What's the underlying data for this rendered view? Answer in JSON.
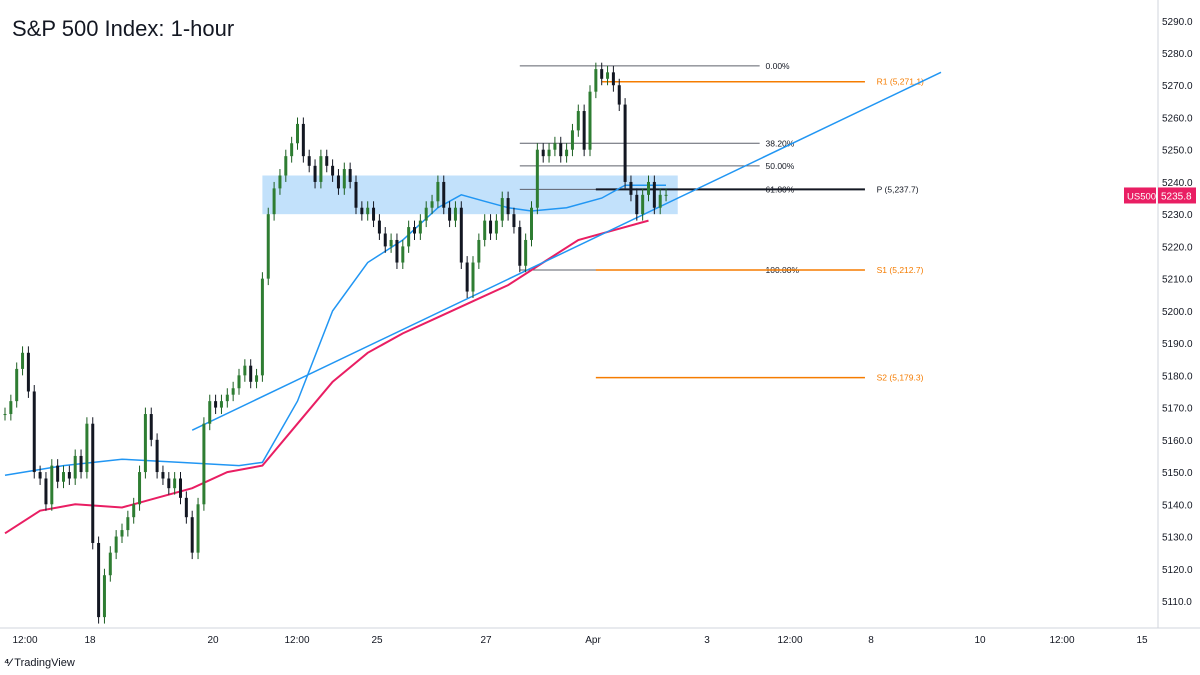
{
  "chart_data": {
    "type": "line",
    "title": "S&P 500 Index: 1-hour",
    "symbol": "US500",
    "last_price": 5235.8,
    "last_price_label": "5235.8",
    "ylim": [
      5100,
      5290
    ],
    "y_ticks": [
      "5110.0",
      "5120.0",
      "5130.0",
      "5140.0",
      "5150.0",
      "5160.0",
      "5170.0",
      "5180.0",
      "5190.0",
      "5200.0",
      "5210.0",
      "5220.0",
      "5230.0",
      "5240.0",
      "5250.0",
      "5260.0",
      "5270.0",
      "5280.0",
      "5290.0"
    ],
    "x_ticks": [
      "12:00",
      "18",
      "20",
      "12:00",
      "25",
      "27",
      "Apr",
      "3",
      "12:00",
      "8",
      "10",
      "12:00",
      "15"
    ],
    "price_series": [
      [
        0,
        5168
      ],
      [
        1,
        5172
      ],
      [
        2,
        5182
      ],
      [
        3,
        5187
      ],
      [
        4,
        5175
      ],
      [
        5,
        5150
      ],
      [
        6,
        5148
      ],
      [
        7,
        5140
      ],
      [
        8,
        5152
      ],
      [
        9,
        5147
      ],
      [
        10,
        5150
      ],
      [
        11,
        5148
      ],
      [
        12,
        5155
      ],
      [
        13,
        5150
      ],
      [
        14,
        5165
      ],
      [
        15,
        5128
      ],
      [
        16,
        5105
      ],
      [
        17,
        5118
      ],
      [
        18,
        5125
      ],
      [
        19,
        5130
      ],
      [
        20,
        5132
      ],
      [
        21,
        5136
      ],
      [
        22,
        5140
      ],
      [
        23,
        5150
      ],
      [
        24,
        5168
      ],
      [
        25,
        5160
      ],
      [
        26,
        5150
      ],
      [
        27,
        5148
      ],
      [
        28,
        5145
      ],
      [
        29,
        5148
      ],
      [
        30,
        5142
      ],
      [
        31,
        5136
      ],
      [
        32,
        5125
      ],
      [
        33,
        5140
      ],
      [
        34,
        5165
      ],
      [
        35,
        5172
      ],
      [
        36,
        5170
      ],
      [
        37,
        5172
      ],
      [
        38,
        5174
      ],
      [
        39,
        5176
      ],
      [
        40,
        5180
      ],
      [
        41,
        5183
      ],
      [
        42,
        5178
      ],
      [
        43,
        5180
      ],
      [
        44,
        5210
      ],
      [
        45,
        5230
      ],
      [
        46,
        5238
      ],
      [
        47,
        5242
      ],
      [
        48,
        5248
      ],
      [
        49,
        5252
      ],
      [
        50,
        5258
      ],
      [
        51,
        5248
      ],
      [
        52,
        5245
      ],
      [
        53,
        5240
      ],
      [
        54,
        5248
      ],
      [
        55,
        5245
      ],
      [
        56,
        5242
      ],
      [
        57,
        5238
      ],
      [
        58,
        5244
      ],
      [
        59,
        5240
      ],
      [
        60,
        5232
      ],
      [
        61,
        5230
      ],
      [
        62,
        5232
      ],
      [
        63,
        5228
      ],
      [
        64,
        5224
      ],
      [
        65,
        5220
      ],
      [
        66,
        5222
      ],
      [
        67,
        5215
      ],
      [
        68,
        5220
      ],
      [
        69,
        5226
      ],
      [
        70,
        5224
      ],
      [
        71,
        5228
      ],
      [
        72,
        5232
      ],
      [
        73,
        5234
      ],
      [
        74,
        5240
      ],
      [
        75,
        5232
      ],
      [
        76,
        5228
      ],
      [
        77,
        5232
      ],
      [
        78,
        5215
      ],
      [
        79,
        5206
      ],
      [
        80,
        5215
      ],
      [
        81,
        5222
      ],
      [
        82,
        5228
      ],
      [
        83,
        5224
      ],
      [
        84,
        5228
      ],
      [
        85,
        5235
      ],
      [
        86,
        5230
      ],
      [
        87,
        5226
      ],
      [
        88,
        5214
      ],
      [
        89,
        5222
      ],
      [
        90,
        5232
      ],
      [
        91,
        5250
      ],
      [
        92,
        5248
      ],
      [
        93,
        5250
      ],
      [
        94,
        5252
      ],
      [
        95,
        5248
      ],
      [
        96,
        5250
      ],
      [
        97,
        5256
      ],
      [
        98,
        5262
      ],
      [
        99,
        5250
      ],
      [
        100,
        5268
      ],
      [
        101,
        5275
      ],
      [
        102,
        5272
      ],
      [
        103,
        5274
      ],
      [
        104,
        5270
      ],
      [
        105,
        5264
      ],
      [
        106,
        5240
      ],
      [
        107,
        5236
      ],
      [
        108,
        5230
      ],
      [
        109,
        5236
      ],
      [
        110,
        5240
      ],
      [
        111,
        5232
      ],
      [
        112,
        5236
      ],
      [
        113,
        5236
      ]
    ],
    "series": [
      {
        "name": "",
        "color": "#2196f3",
        "values": [
          [
            0,
            5149
          ],
          [
            10,
            5152
          ],
          [
            20,
            5154
          ],
          [
            30,
            5153
          ],
          [
            40,
            5152
          ],
          [
            44,
            5153
          ],
          [
            50,
            5172
          ],
          [
            56,
            5200
          ],
          [
            62,
            5215
          ],
          [
            68,
            5222
          ],
          [
            74,
            5232
          ],
          [
            78,
            5236
          ],
          [
            82,
            5234
          ],
          [
            86,
            5232
          ],
          [
            90,
            5231
          ],
          [
            96,
            5232
          ],
          [
            102,
            5235
          ],
          [
            106,
            5239
          ],
          [
            113,
            5239
          ]
        ]
      },
      {
        "name": "",
        "color": "#e91e63",
        "values": [
          [
            0,
            5131
          ],
          [
            6,
            5138
          ],
          [
            12,
            5140
          ],
          [
            20,
            5139
          ],
          [
            26,
            5142
          ],
          [
            32,
            5145
          ],
          [
            38,
            5150
          ],
          [
            44,
            5152
          ],
          [
            50,
            5165
          ],
          [
            56,
            5178
          ],
          [
            62,
            5187
          ],
          [
            68,
            5193
          ],
          [
            74,
            5198
          ],
          [
            80,
            5203
          ],
          [
            86,
            5208
          ],
          [
            92,
            5215
          ],
          [
            98,
            5222
          ],
          [
            104,
            5225
          ],
          [
            110,
            5228
          ]
        ]
      }
    ],
    "trendline": {
      "from": [
        32,
        5163
      ],
      "to": [
        160,
        5274
      ]
    },
    "supply_zone": {
      "x_from": 44,
      "x_to": 115,
      "y_from": 5230,
      "y_to": 5242
    },
    "fibonacci": [
      {
        "label": "0.00%",
        "value": 5276
      },
      {
        "label": "38.20%",
        "value": 5252
      },
      {
        "label": "50.00%",
        "value": 5245
      },
      {
        "label": "61.80%",
        "value": 5237.7
      },
      {
        "label": "100.00%",
        "value": 5212.7
      }
    ],
    "pivot_levels": [
      {
        "label": "R1 (5,271.1)",
        "value": 5271.1,
        "color": "#f57c00"
      },
      {
        "label": "P (5,237.7)",
        "value": 5237.7,
        "color": "#131722"
      },
      {
        "label": "S1 (5,212.7)",
        "value": 5212.7,
        "color": "#f57c00"
      },
      {
        "label": "S2 (5,179.3)",
        "value": 5179.3,
        "color": "#f57c00"
      }
    ],
    "colors": {
      "accent": "#2196f3",
      "ma": "#e91e63",
      "pivot_orange": "#f57c00",
      "badge": "#e91e63",
      "zone": "#bbdefb"
    }
  },
  "footer": {
    "brand": "TradingView"
  }
}
